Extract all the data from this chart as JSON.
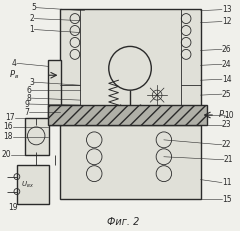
{
  "title": "Фиг. 2",
  "title_fontsize": 7,
  "bg_color": "#f0f0eb",
  "line_color": "#2a2a2a",
  "face_color": "#e0e0d8",
  "hatch_face_color": "#b8b8b0"
}
